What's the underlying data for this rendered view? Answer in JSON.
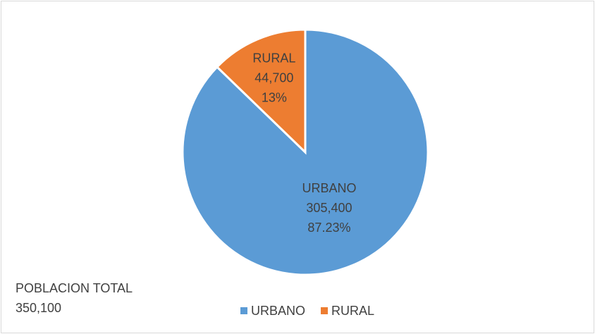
{
  "chart_data": {
    "type": "pie",
    "categories": [
      "URBANO",
      "RURAL"
    ],
    "values": [
      305400,
      44700
    ],
    "value_labels": [
      "305,400",
      "44,700"
    ],
    "percent_labels": [
      "87.23%",
      "13%"
    ],
    "colors": [
      "#5b9bd5",
      "#ed7d31"
    ],
    "legend": "bottom",
    "annotation": {
      "title": "POBLACION TOTAL",
      "text": "350,100"
    }
  }
}
